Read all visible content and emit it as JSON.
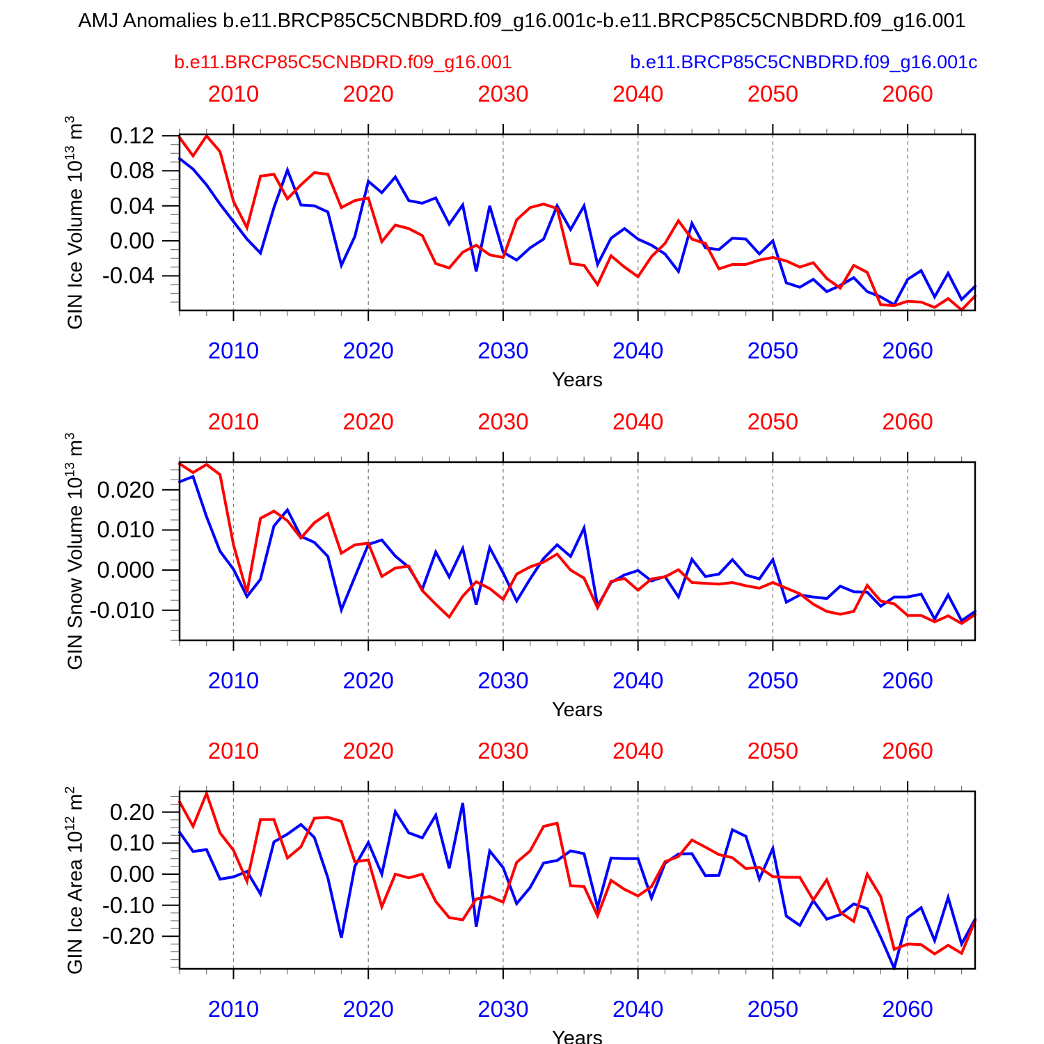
{
  "title": "AMJ Anomalies b.e11.BRCP85C5CNBDRD.f09_g16.001c-b.e11.BRCP85C5CNBDRD.f09_g16.001",
  "legend": {
    "red": "b.e11.BRCP85C5CNBDRD.f09_g16.001",
    "blue": "b.e11.BRCP85C5CNBDRD.f09_g16.001c"
  },
  "axis": {
    "xlabel": "Years",
    "decade_labels": [
      "2010",
      "2020",
      "2030",
      "2040",
      "2050",
      "2060"
    ],
    "top_label_color": "#ff0000",
    "bottom_label_color": "#0000ff"
  },
  "colors": {
    "series_red": "#ff0000",
    "series_blue": "#0000ff",
    "grid": "#808080",
    "frame": "#000000",
    "minor_tick": "#777777"
  },
  "years": [
    2006,
    2007,
    2008,
    2009,
    2010,
    2011,
    2012,
    2013,
    2014,
    2015,
    2016,
    2017,
    2018,
    2019,
    2020,
    2021,
    2022,
    2023,
    2024,
    2025,
    2026,
    2027,
    2028,
    2029,
    2030,
    2031,
    2032,
    2033,
    2034,
    2035,
    2036,
    2037,
    2038,
    2039,
    2040,
    2041,
    2042,
    2043,
    2044,
    2045,
    2046,
    2047,
    2048,
    2049,
    2050,
    2051,
    2052,
    2053,
    2054,
    2055,
    2056,
    2057,
    2058,
    2059,
    2060,
    2061,
    2062,
    2063,
    2064,
    2065
  ],
  "chart_data": [
    {
      "type": "line",
      "name": "GIN Ice Volume",
      "ylabel": [
        [
          "t",
          "GIN Ice Volume 10"
        ],
        [
          "s",
          "13"
        ],
        [
          "t",
          " m"
        ],
        [
          "s",
          "3"
        ]
      ],
      "x_range": [
        2006,
        2065
      ],
      "x_major_step": 10,
      "x_minor_step": 2,
      "ylim": [
        -0.0795,
        0.1217
      ],
      "yticks": [
        {
          "label": "0.12",
          "value": 0.12
        },
        {
          "label": "0.08",
          "value": 0.08
        },
        {
          "label": "0.04",
          "value": 0.04
        },
        {
          "label": "0.00",
          "value": 0.0
        },
        {
          "label": "-0.04",
          "value": -0.04
        }
      ],
      "y_minor_step": 0.01,
      "grid": "dashed-vertical-decades",
      "series": [
        {
          "name": "b.e11.BRCP85C5CNBDRD.f09_g16.001",
          "color": "#ff0000",
          "values": [
            0.118,
            0.097,
            0.12,
            0.102,
            0.045,
            0.015,
            0.074,
            0.076,
            0.048,
            0.064,
            0.078,
            0.076,
            0.038,
            0.046,
            0.049,
            -0.001,
            0.018,
            0.014,
            0.006,
            -0.026,
            -0.031,
            -0.013,
            -0.005,
            -0.016,
            -0.019,
            0.024,
            0.038,
            0.042,
            0.037,
            -0.026,
            -0.028,
            -0.05,
            -0.017,
            -0.03,
            -0.041,
            -0.018,
            -0.003,
            0.023,
            0.002,
            -0.003,
            -0.032,
            -0.027,
            -0.027,
            -0.022,
            -0.019,
            -0.023,
            -0.03,
            -0.025,
            -0.043,
            -0.054,
            -0.028,
            -0.036,
            -0.073,
            -0.074,
            -0.069,
            -0.07,
            -0.076,
            -0.066,
            -0.079,
            -0.063
          ]
        },
        {
          "name": "b.e11.BRCP85C5CNBDRD.f09_g16.001c",
          "color": "#0000ff",
          "values": [
            0.094,
            0.082,
            0.064,
            0.042,
            0.022,
            0.002,
            -0.014,
            0.038,
            0.081,
            0.041,
            0.04,
            0.033,
            -0.028,
            0.005,
            0.068,
            0.055,
            0.073,
            0.046,
            0.043,
            0.049,
            0.019,
            0.041,
            -0.035,
            0.04,
            -0.013,
            -0.022,
            -0.008,
            0.002,
            0.04,
            0.013,
            0.04,
            -0.027,
            0.003,
            0.014,
            0.002,
            -0.005,
            -0.015,
            -0.035,
            0.02,
            -0.008,
            -0.01,
            0.003,
            0.002,
            -0.015,
            0.0,
            -0.048,
            -0.053,
            -0.044,
            -0.058,
            -0.051,
            -0.042,
            -0.058,
            -0.064,
            -0.073,
            -0.044,
            -0.034,
            -0.064,
            -0.037,
            -0.067,
            -0.052
          ]
        }
      ]
    },
    {
      "type": "line",
      "name": "GIN Snow Volume",
      "ylabel": [
        [
          "t",
          "GIN Snow Volume 10"
        ],
        [
          "s",
          "13"
        ],
        [
          "t",
          " m"
        ],
        [
          "s",
          "3"
        ]
      ],
      "x_range": [
        2006,
        2065
      ],
      "x_major_step": 10,
      "x_minor_step": 2,
      "ylim": [
        -0.0175,
        0.0269
      ],
      "yticks": [
        {
          "label": "0.020",
          "value": 0.02
        },
        {
          "label": "0.010",
          "value": 0.01
        },
        {
          "label": "0.000",
          "value": 0.0
        },
        {
          "label": "-0.010",
          "value": -0.01
        }
      ],
      "y_minor_step": 0.0025,
      "grid": "dashed-vertical-decades",
      "series": [
        {
          "name": "b.e11.BRCP85C5CNBDRD.f09_g16.001",
          "color": "#ff0000",
          "values": [
            0.0265,
            0.0243,
            0.0263,
            0.0238,
            0.0063,
            -0.0056,
            0.0129,
            0.0147,
            0.0123,
            0.008,
            0.0118,
            0.0141,
            0.0042,
            0.0063,
            0.0067,
            -0.0016,
            0.0005,
            0.001,
            -0.0051,
            -0.0085,
            -0.0117,
            -0.0065,
            -0.0029,
            -0.0046,
            -0.0073,
            -0.001,
            0.0008,
            0.002,
            0.004,
            0.0,
            -0.002,
            -0.0094,
            -0.0028,
            -0.0021,
            -0.005,
            -0.0022,
            -0.0017,
            0.0001,
            -0.0031,
            -0.0033,
            -0.0035,
            -0.0031,
            -0.0039,
            -0.0045,
            -0.0031,
            -0.0045,
            -0.0059,
            -0.0085,
            -0.0103,
            -0.011,
            -0.0103,
            -0.0038,
            -0.0077,
            -0.0084,
            -0.0113,
            -0.0113,
            -0.0129,
            -0.0114,
            -0.0133,
            -0.0111
          ]
        },
        {
          "name": "b.e11.BRCP85C5CNBDRD.f09_g16.001c",
          "color": "#0000ff",
          "values": [
            0.022,
            0.0233,
            0.0133,
            0.0047,
            0.0002,
            -0.0066,
            -0.0023,
            0.011,
            0.015,
            0.0084,
            0.0069,
            0.0034,
            -0.0099,
            -0.0017,
            0.0064,
            0.0075,
            0.0035,
            0.0007,
            -0.0048,
            0.0045,
            -0.0017,
            0.0054,
            -0.0086,
            0.0056,
            -0.0007,
            -0.0077,
            -0.0022,
            0.0029,
            0.0063,
            0.0034,
            0.0105,
            -0.009,
            -0.0031,
            -0.0012,
            -0.0001,
            -0.0027,
            -0.0016,
            -0.0067,
            0.0027,
            -0.0016,
            -0.001,
            0.0026,
            -0.0012,
            -0.0022,
            0.0026,
            -0.008,
            -0.0062,
            -0.0067,
            -0.0071,
            -0.004,
            -0.0054,
            -0.0055,
            -0.009,
            -0.0067,
            -0.0067,
            -0.006,
            -0.0122,
            -0.0062,
            -0.0126,
            -0.0103
          ]
        }
      ]
    },
    {
      "type": "line",
      "name": "GIN Ice Area",
      "ylabel": [
        [
          "t",
          "GIN Ice Area 10"
        ],
        [
          "s",
          "12"
        ],
        [
          "t",
          " m"
        ],
        [
          "s",
          "2"
        ]
      ],
      "x_range": [
        2006,
        2065
      ],
      "x_major_step": 10,
      "x_minor_step": 2,
      "ylim": [
        -0.3049,
        0.2667
      ],
      "yticks": [
        {
          "label": "0.20",
          "value": 0.2
        },
        {
          "label": "0.10",
          "value": 0.1
        },
        {
          "label": "0.00",
          "value": 0.0
        },
        {
          "label": "-0.10",
          "value": -0.1
        },
        {
          "label": "-0.20",
          "value": -0.2
        }
      ],
      "y_minor_step": 0.025,
      "grid": "dashed-vertical-decades",
      "series": [
        {
          "name": "b.e11.BRCP85C5CNBDRD.f09_g16.001",
          "color": "#ff0000",
          "values": [
            0.233,
            0.154,
            0.26,
            0.133,
            0.077,
            -0.023,
            0.176,
            0.176,
            0.052,
            0.088,
            0.18,
            0.183,
            0.17,
            0.04,
            0.046,
            -0.105,
            0.0,
            -0.012,
            0.0,
            -0.088,
            -0.14,
            -0.147,
            -0.08,
            -0.072,
            -0.09,
            0.038,
            0.075,
            0.154,
            0.164,
            -0.037,
            -0.04,
            -0.134,
            -0.02,
            -0.049,
            -0.07,
            -0.04,
            0.04,
            0.057,
            0.11,
            0.087,
            0.063,
            0.053,
            0.018,
            0.022,
            -0.008,
            -0.01,
            -0.01,
            -0.083,
            -0.018,
            -0.123,
            -0.152,
            0.0,
            -0.072,
            -0.242,
            -0.225,
            -0.227,
            -0.257,
            -0.229,
            -0.255,
            -0.15
          ]
        },
        {
          "name": "b.e11.BRCP85C5CNBDRD.f09_g16.001c",
          "color": "#0000ff",
          "values": [
            0.135,
            0.073,
            0.079,
            -0.016,
            -0.009,
            0.009,
            -0.064,
            0.104,
            0.129,
            0.16,
            0.118,
            -0.012,
            -0.205,
            0.025,
            0.102,
            0.0,
            0.201,
            0.133,
            0.117,
            0.19,
            0.019,
            0.229,
            -0.17,
            0.075,
            0.021,
            -0.095,
            -0.043,
            0.036,
            0.044,
            0.075,
            0.066,
            -0.107,
            0.052,
            0.05,
            0.05,
            -0.077,
            0.035,
            0.065,
            0.066,
            -0.005,
            -0.004,
            0.143,
            0.122,
            -0.016,
            0.083,
            -0.135,
            -0.165,
            -0.085,
            -0.145,
            -0.13,
            -0.096,
            -0.111,
            -0.203,
            -0.303,
            -0.14,
            -0.108,
            -0.214,
            -0.075,
            -0.225,
            -0.145
          ]
        }
      ]
    }
  ]
}
